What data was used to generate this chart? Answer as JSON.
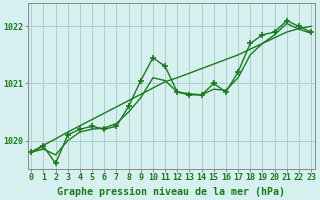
{
  "x": [
    0,
    1,
    2,
    3,
    4,
    5,
    6,
    7,
    8,
    9,
    10,
    11,
    12,
    13,
    14,
    15,
    16,
    17,
    18,
    19,
    20,
    21,
    22,
    23
  ],
  "y_main": [
    1019.8,
    1019.9,
    1019.6,
    1020.1,
    1020.2,
    1020.25,
    1020.2,
    1020.25,
    1020.6,
    1021.05,
    1021.45,
    1021.3,
    1020.85,
    1020.8,
    1020.8,
    1021.0,
    1020.85,
    1021.2,
    1021.7,
    1021.85,
    1021.9,
    1022.1,
    1022.0,
    1021.9
  ],
  "y_smooth": [
    1019.8,
    1019.85,
    1019.75,
    1020.0,
    1020.15,
    1020.2,
    1020.22,
    1020.3,
    1020.5,
    1020.75,
    1021.1,
    1021.05,
    1020.85,
    1020.82,
    1020.8,
    1020.9,
    1020.88,
    1021.1,
    1021.5,
    1021.7,
    1021.85,
    1022.05,
    1021.95,
    1021.88
  ],
  "y_trend": [
    1019.8,
    1019.92,
    1020.03,
    1020.15,
    1020.26,
    1020.37,
    1020.48,
    1020.59,
    1020.7,
    1020.81,
    1020.92,
    1021.03,
    1021.1,
    1021.18,
    1021.26,
    1021.34,
    1021.42,
    1021.5,
    1021.6,
    1021.7,
    1021.8,
    1021.9,
    1021.96,
    1022.0
  ],
  "line_color": "#1a7a1a",
  "marker": "+",
  "markersize": 4,
  "markeredgewidth": 1.2,
  "linewidth": 1.0,
  "bg_color": "#d6f0f0",
  "grid_color": "#a8d0d0",
  "title": "Graphe pression niveau de la mer (hPa)",
  "ylabel_ticks": [
    1020,
    1021,
    1022
  ],
  "xlim": [
    -0.3,
    23.3
  ],
  "ylim": [
    1019.5,
    1022.4
  ],
  "xtick_labels": [
    "0",
    "1",
    "2",
    "3",
    "4",
    "5",
    "6",
    "7",
    "8",
    "9",
    "10",
    "11",
    "12",
    "13",
    "14",
    "15",
    "16",
    "17",
    "18",
    "19",
    "20",
    "21",
    "22",
    "23"
  ],
  "tick_fontsize": 6.0,
  "title_fontsize": 7.2,
  "tick_color": "#1a7a1a",
  "spine_color": "#888888"
}
